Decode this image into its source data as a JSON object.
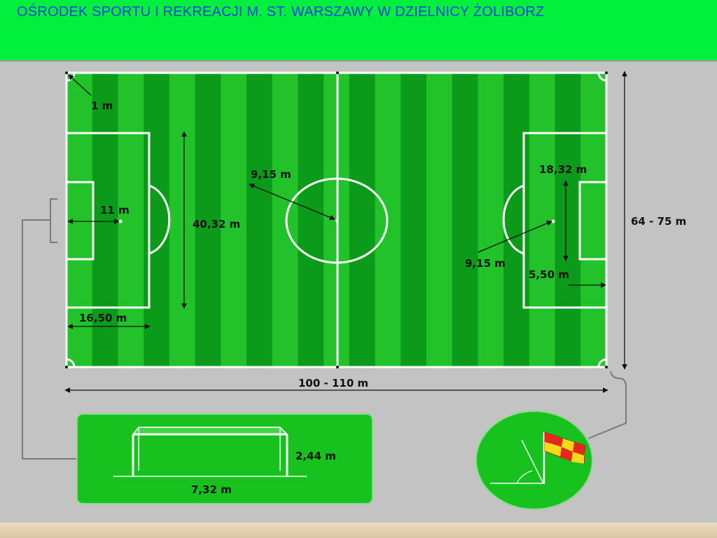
{
  "header": {
    "title": "OŚRODEK SPORTU I REKREACJI M. ST. WARSZAWY W DZIELNICY ŻOLIBORZ"
  },
  "labels": {
    "corner": "1 m",
    "penalty_spot": "11 m",
    "penalty_width": "40,32 m",
    "penalty_depth": "16,50 m",
    "center_radius": "9,15 m",
    "goal_area_width": "18,32 m",
    "arc_radius": "9,15 m",
    "goal_area_depth": "5,50 m",
    "field_width": "64 - 75 m",
    "field_length": "100 - 110 m",
    "goal_height": "2,44 m",
    "goal_width": "7,32 m"
  },
  "colors": {
    "header_bg": "#00f03c",
    "title_text": "#1a43e0",
    "grass_light": "#22c22a",
    "grass_dark": "#0c9a1a",
    "panel_green": "#17c21f",
    "flag_red": "#e8261c",
    "flag_yellow": "#f2dc1a"
  },
  "icons": {
    "corner_flag": "corner-flag-icon",
    "goal": "goal-icon"
  }
}
